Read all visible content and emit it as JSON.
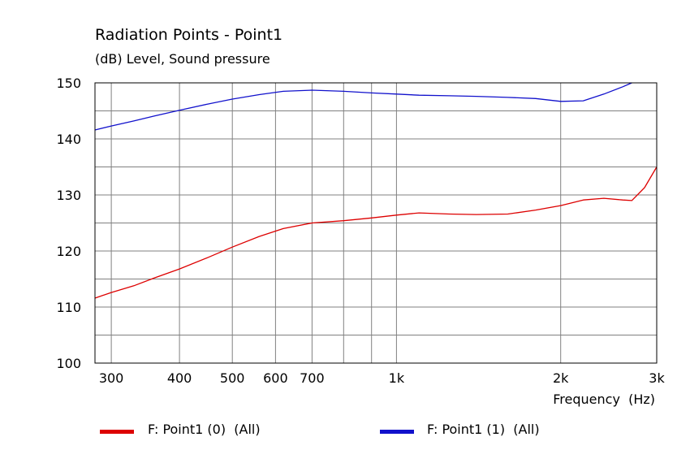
{
  "chart_data": {
    "type": "line",
    "title": "Radiation Points - Point1",
    "subtitle": "(dB)  Level, Sound pressure",
    "xlabel": "Frequency  (Hz)",
    "ylabel": "",
    "x_scale": "log",
    "xlim": [
      280,
      3000
    ],
    "ylim": [
      100,
      150
    ],
    "grid": true,
    "legend_position": "bottom",
    "x_gridlines": [
      300,
      400,
      500,
      600,
      700,
      800,
      900,
      1000,
      2000,
      3000
    ],
    "y_minor_gridlines": [
      105,
      115,
      125,
      135,
      145
    ],
    "x_ticks": [
      {
        "value": 300,
        "label": "300"
      },
      {
        "value": 400,
        "label": "400"
      },
      {
        "value": 500,
        "label": "500"
      },
      {
        "value": 600,
        "label": "600"
      },
      {
        "value": 700,
        "label": "700"
      },
      {
        "value": 1000,
        "label": "1k"
      },
      {
        "value": 2000,
        "label": "2k"
      },
      {
        "value": 3000,
        "label": "3k"
      }
    ],
    "y_ticks": [
      {
        "value": 100,
        "label": "100"
      },
      {
        "value": 110,
        "label": "110"
      },
      {
        "value": 120,
        "label": "120"
      },
      {
        "value": 130,
        "label": "130"
      },
      {
        "value": 140,
        "label": "140"
      },
      {
        "value": 150,
        "label": "150"
      }
    ],
    "series": [
      {
        "name": "F: Point1 (0)  (All)",
        "color": "#dd0000",
        "x": [
          280,
          300,
          330,
          360,
          400,
          450,
          500,
          560,
          620,
          700,
          800,
          900,
          1000,
          1100,
          1250,
          1400,
          1600,
          1800,
          2000,
          2200,
          2400,
          2600,
          2700,
          2850,
          3000
        ],
        "y": [
          111.6,
          112.6,
          113.8,
          115.2,
          116.8,
          118.8,
          120.7,
          122.6,
          124.0,
          125.0,
          125.4,
          125.9,
          126.4,
          126.8,
          126.6,
          126.5,
          126.6,
          127.3,
          128.1,
          129.1,
          129.4,
          129.1,
          129.0,
          131.3,
          135.0
        ]
      },
      {
        "name": "F: Point1 (1)  (All)",
        "color": "#1111cc",
        "x": [
          280,
          300,
          330,
          360,
          400,
          450,
          500,
          560,
          620,
          700,
          800,
          900,
          1000,
          1100,
          1250,
          1400,
          1600,
          1800,
          2000,
          2200,
          2400,
          2600,
          2700
        ],
        "y": [
          141.6,
          142.3,
          143.2,
          144.1,
          145.1,
          146.2,
          147.1,
          147.9,
          148.5,
          148.7,
          148.5,
          148.2,
          148.0,
          147.8,
          147.7,
          147.6,
          147.4,
          147.2,
          146.7,
          146.8,
          148.0,
          149.3,
          150.0
        ]
      }
    ]
  }
}
